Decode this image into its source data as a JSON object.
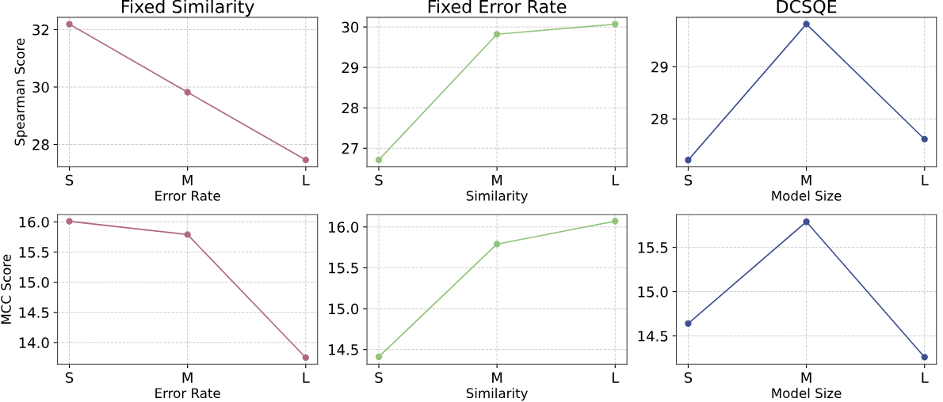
{
  "chart_data": [
    {
      "type": "line",
      "title": "Fixed Similarity",
      "xlabel": "Error Rate",
      "ylabel": "Spearman Score",
      "categories": [
        "S",
        "M",
        "L"
      ],
      "series": [
        {
          "color": "#b06a80",
          "values": [
            32.19,
            29.82,
            27.46
          ]
        }
      ],
      "ylim": [
        27.22,
        32.43
      ],
      "yticks": [
        28,
        30,
        32
      ],
      "grid": true,
      "marker": "circle",
      "line_style": "solid"
    },
    {
      "type": "line",
      "title": "Fixed Error Rate",
      "xlabel": "Similarity",
      "categories": [
        "S",
        "M",
        "L"
      ],
      "series": [
        {
          "color": "#93c47d",
          "values": [
            26.71,
            29.82,
            30.07
          ]
        }
      ],
      "ylim": [
        26.54,
        30.24
      ],
      "yticks": [
        27,
        28,
        29,
        30
      ],
      "grid": true,
      "marker": "circle",
      "line_style": "solid"
    },
    {
      "type": "line",
      "title": "DCSQE",
      "xlabel": "Model Size",
      "categories": [
        "S",
        "M",
        "L"
      ],
      "series": [
        {
          "color": "#3f4f8f",
          "values": [
            27.21,
            29.82,
            27.61
          ]
        }
      ],
      "ylim": [
        27.08,
        29.95
      ],
      "yticks": [
        28,
        29
      ],
      "grid": true,
      "marker": "circle",
      "line_style": "solid"
    },
    {
      "type": "line",
      "xlabel": "Error Rate",
      "ylabel": "MCC Score",
      "categories": [
        "S",
        "M",
        "L"
      ],
      "series": [
        {
          "color": "#b06a80",
          "values": [
            16.01,
            15.79,
            13.75
          ]
        }
      ],
      "ylim": [
        13.64,
        16.12
      ],
      "yticks": [
        {
          "value": 14,
          "label": "14.0"
        },
        14.5,
        {
          "value": 15,
          "label": "15.0"
        },
        15.5,
        {
          "value": 16,
          "label": "16.0"
        }
      ],
      "grid": true,
      "marker": "circle",
      "line_style": "solid"
    },
    {
      "type": "line",
      "xlabel": "Similarity",
      "categories": [
        "S",
        "M",
        "L"
      ],
      "series": [
        {
          "color": "#93c47d",
          "values": [
            14.41,
            15.79,
            16.07
          ]
        }
      ],
      "ylim": [
        14.32,
        16.15
      ],
      "yticks": [
        14.5,
        {
          "value": 15,
          "label": "15.0"
        },
        15.5,
        {
          "value": 16,
          "label": "16.0"
        }
      ],
      "grid": true,
      "marker": "circle",
      "line_style": "solid"
    },
    {
      "type": "line",
      "xlabel": "Model Size",
      "categories": [
        "S",
        "M",
        "L"
      ],
      "series": [
        {
          "color": "#3f4f8f",
          "values": [
            14.64,
            15.79,
            14.26
          ]
        }
      ],
      "ylim": [
        14.18,
        15.87
      ],
      "yticks": [
        14.5,
        {
          "value": 15,
          "label": "15.0"
        },
        15.5
      ],
      "grid": true,
      "marker": "circle",
      "line_style": "solid"
    }
  ]
}
